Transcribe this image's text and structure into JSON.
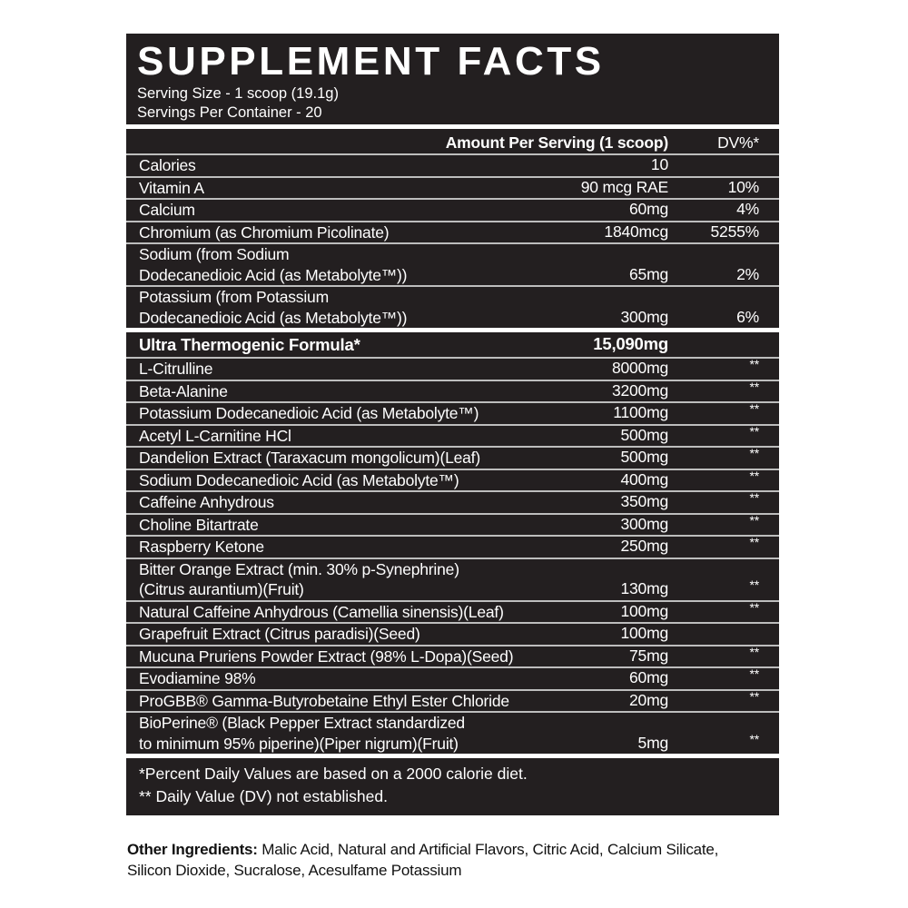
{
  "title": "SUPPLEMENT FACTS",
  "serving_size": "Serving Size - 1 scoop (19.1g)",
  "servings_per_container": "Servings Per Container - 20",
  "header": {
    "amount": "Amount Per Serving (1 scoop)",
    "dv": "DV%*"
  },
  "nutrients": [
    {
      "name": "Calories",
      "amount": "10",
      "dv": ""
    },
    {
      "name": "Vitamin A",
      "amount": "90 mcg RAE",
      "dv": "10%"
    },
    {
      "name": "Calcium",
      "amount": "60mg",
      "dv": "4%"
    },
    {
      "name": "Chromium (as Chromium Picolinate)",
      "amount": "1840mcg",
      "dv": "5255%"
    },
    {
      "name": "Sodium (from Sodium",
      "name2": "Dodecanedioic Acid (as Metabolyte™))",
      "amount": "65mg",
      "dv": "2%"
    },
    {
      "name": "Potassium (from Potassium",
      "name2": "Dodecanedioic Acid (as Metabolyte™))",
      "amount": "300mg",
      "dv": "6%"
    }
  ],
  "blend": {
    "name": "Ultra Thermogenic Formula*",
    "amount": "15,090mg"
  },
  "ingredients": [
    {
      "name": "L-Citrulline",
      "amount": "8000mg",
      "dv": "**"
    },
    {
      "name": "Beta-Alanine",
      "amount": "3200mg",
      "dv": "**"
    },
    {
      "name": "Potassium Dodecanedioic Acid (as Metabolyte™)",
      "amount": "1100mg",
      "dv": "**"
    },
    {
      "name": "Acetyl L-Carnitine HCl",
      "amount": "500mg",
      "dv": "**"
    },
    {
      "name": "Dandelion Extract (Taraxacum mongolicum)(Leaf)",
      "amount": "500mg",
      "dv": "**"
    },
    {
      "name": "Sodium Dodecanedioic Acid (as Metabolyte™)",
      "amount": "400mg",
      "dv": "**"
    },
    {
      "name": "Caffeine Anhydrous",
      "amount": "350mg",
      "dv": "**"
    },
    {
      "name": "Choline Bitartrate",
      "amount": "300mg",
      "dv": "**"
    },
    {
      "name": "Raspberry Ketone",
      "amount": "250mg",
      "dv": "**"
    },
    {
      "name": "Bitter Orange Extract (min. 30% p-Synephrine)",
      "name2": "(Citrus aurantium)(Fruit)",
      "amount": "130mg",
      "dv": "**"
    },
    {
      "name": "Natural Caffeine Anhydrous (Camellia sinensis)(Leaf)",
      "amount": "100mg",
      "dv": "**"
    },
    {
      "name": "Grapefruit Extract (Citrus paradisi)(Seed)",
      "amount": "100mg",
      "dv": ""
    },
    {
      "name": "Mucuna Pruriens Powder Extract (98% L-Dopa)(Seed)",
      "amount": "75mg",
      "dv": "**"
    },
    {
      "name": "Evodiamine 98%",
      "amount": "60mg",
      "dv": "**"
    },
    {
      "name": "ProGBB®  Gamma-Butyrobetaine Ethyl Ester Chloride",
      "amount": "20mg",
      "dv": "**"
    },
    {
      "name": "BioPerine® (Black Pepper Extract standardized",
      "name2": "to minimum 95% piperine)(Piper nigrum)(Fruit)",
      "amount": "5mg",
      "dv": "**"
    }
  ],
  "footnotes": [
    "*Percent Daily Values are based on a  2000 calorie diet.",
    "** Daily Value (DV) not established."
  ],
  "other_ingredients": {
    "label": "Other Ingredients:",
    "text": " Malic Acid, Natural and Artificial Flavors, Citric Acid, Calcium Silicate, Silicon Dioxide, Sucralose, Acesulfame Potassium"
  },
  "colors": {
    "panel": "#231f20",
    "divider": "#bdbdbd",
    "text": "#ffffff"
  }
}
